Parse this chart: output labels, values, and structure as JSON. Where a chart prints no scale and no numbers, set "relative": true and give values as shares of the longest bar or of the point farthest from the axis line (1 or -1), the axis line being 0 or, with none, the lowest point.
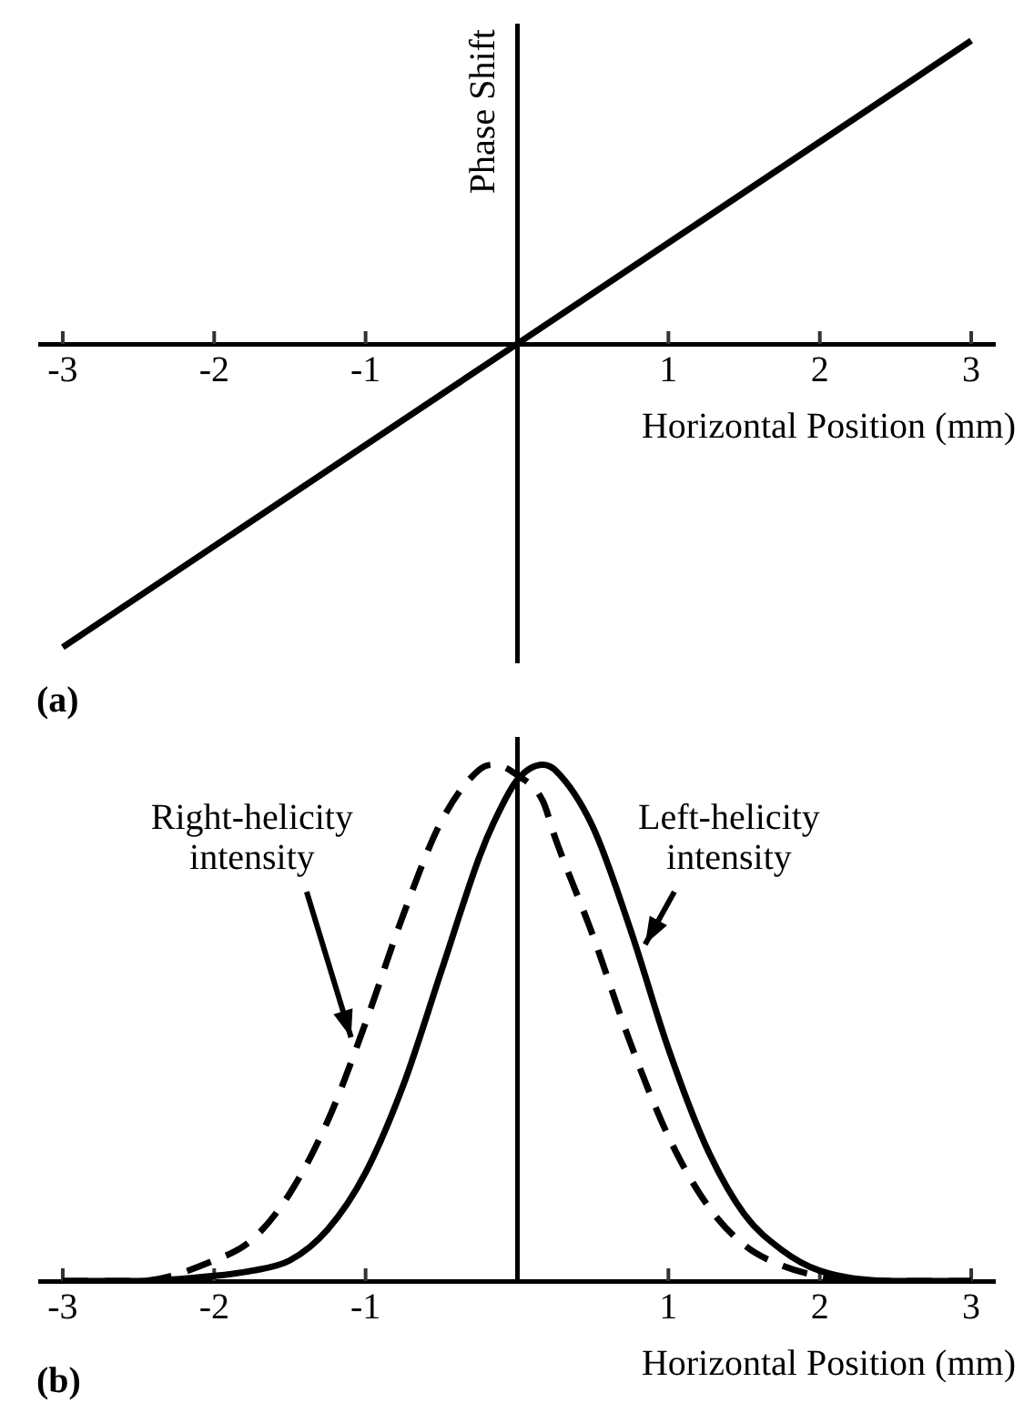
{
  "chart_data": [
    {
      "type": "line",
      "ylabel": "Phase Shift",
      "xlabel": "Horizontal Position (mm)",
      "annotations": [
        "(a)"
      ],
      "relative": true,
      "xlim": [
        -3.15,
        3.15
      ],
      "xticks": [
        -3,
        -2,
        -1,
        1,
        2,
        3
      ],
      "legend": false,
      "x": [
        -3,
        3
      ],
      "series": [
        {
          "color": "#000000",
          "line_style": "solid",
          "values": [
            -1,
            1
          ]
        }
      ]
    },
    {
      "type": "line",
      "xlabel": "Horizontal Position (mm)",
      "annotations": [
        "(b)"
      ],
      "relative": true,
      "xlim": [
        -3.15,
        3.15
      ],
      "xticks": [
        -3,
        -2,
        -1,
        1,
        2,
        3
      ],
      "legend": false,
      "x": [
        -3,
        -2.5,
        -2,
        -1.75,
        -1.5,
        -1.25,
        -1,
        -0.75,
        -0.5,
        -0.25,
        -0.15,
        0,
        0.17,
        0.25,
        0.5,
        0.75,
        1,
        1.25,
        1.5,
        1.75,
        2,
        2.5,
        3
      ],
      "series": [
        {
          "name": "Right-helicity intensity",
          "color": "#000000",
          "line_style": "dashed",
          "values": [
            0,
            0,
            0.04,
            0.08,
            0.17,
            0.31,
            0.5,
            0.71,
            0.89,
            0.99,
            1,
            0.98,
            0.93,
            0.86,
            0.67,
            0.46,
            0.28,
            0.15,
            0.07,
            0.03,
            0.01,
            0,
            0
          ]
        },
        {
          "name": "Left-helicity intensity",
          "color": "#000000",
          "line_style": "solid",
          "values": [
            0,
            0,
            0.01,
            0.02,
            0.04,
            0.1,
            0.21,
            0.38,
            0.6,
            0.82,
            0.89,
            0.97,
            1,
            0.99,
            0.88,
            0.68,
            0.45,
            0.26,
            0.13,
            0.06,
            0.02,
            0,
            0
          ]
        }
      ]
    }
  ]
}
